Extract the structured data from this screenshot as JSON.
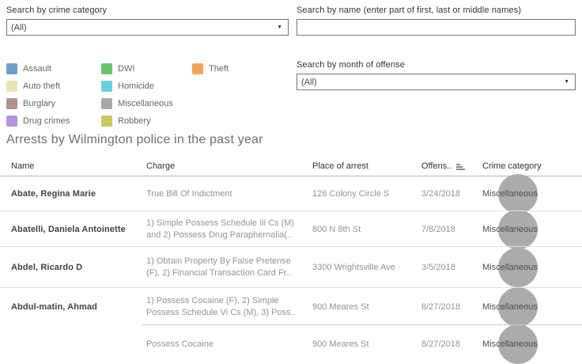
{
  "filters": {
    "crime_category": {
      "label": "Search by crime category",
      "value": "(All)"
    },
    "name_search": {
      "label": "Search by name (enter part of first, last or middle names)",
      "value": "",
      "placeholder": ""
    },
    "month": {
      "label": "Search by month of offense",
      "value": "(All)"
    }
  },
  "icons": {
    "dropdown_arrow": "▼",
    "sort": "sort-ascending-bars"
  },
  "legend": {
    "items": [
      {
        "label": "Assault",
        "color": "#729ece"
      },
      {
        "label": "Auto theft",
        "color": "#e8e4b4"
      },
      {
        "label": "Burglary",
        "color": "#b2908c"
      },
      {
        "label": "Drug crimes",
        "color": "#b794dd"
      },
      {
        "label": "DWI",
        "color": "#69c56d"
      },
      {
        "label": "Homicide",
        "color": "#66d1e0"
      },
      {
        "label": "Miscellaneous",
        "color": "#a8a8a8"
      },
      {
        "label": "Robbery",
        "color": "#c9c95f"
      },
      {
        "label": "Theft",
        "color": "#f5a35c"
      }
    ]
  },
  "title": "Arrests by Wilmington police in the past year",
  "table": {
    "columns": {
      "name": "Name",
      "charge": "Charge",
      "place": "Place of arrest",
      "offense": "Offens..",
      "category": "Crime category"
    },
    "mark_color": "#ababab",
    "rows": [
      {
        "name": "Abate, Regina Marie",
        "charge": [
          "True Bill Of Indictment"
        ],
        "place": "126 Colony Circle S",
        "date": "3/24/2018",
        "category": "Miscellaneous"
      },
      {
        "name": "Abatelli, Daniela Antoinette",
        "charge": [
          "1) Simple Possess Schedule Iii Cs (M)",
          "and 2) Possess Drug Paraphernalia(.."
        ],
        "place": "800 N 8th St",
        "date": "7/8/2018",
        "category": "Miscellaneous"
      },
      {
        "name": "Abdel, Ricardo D",
        "charge": [
          "1) Obtain Property By False Pretense",
          "(F), 2) Financial Transaction Card Fr.."
        ],
        "place": "3300 Wrightsville Ave",
        "date": "3/5/2018",
        "category": "Miscellaneous"
      },
      {
        "name": "Abdul-matin, Ahmad",
        "charge": [
          "1) Possess Cocaine (F), 2) Simple",
          "Possess Schedule Vi Cs (M), 3) Poss.."
        ],
        "place": "900 Meares St",
        "date": "8/27/2018",
        "category": "Miscellaneous"
      },
      {
        "name": "",
        "charge": [
          "Possess Cocaine"
        ],
        "place": "900 Meares St",
        "date": "8/27/2018",
        "category": "Miscellaneous"
      }
    ]
  }
}
